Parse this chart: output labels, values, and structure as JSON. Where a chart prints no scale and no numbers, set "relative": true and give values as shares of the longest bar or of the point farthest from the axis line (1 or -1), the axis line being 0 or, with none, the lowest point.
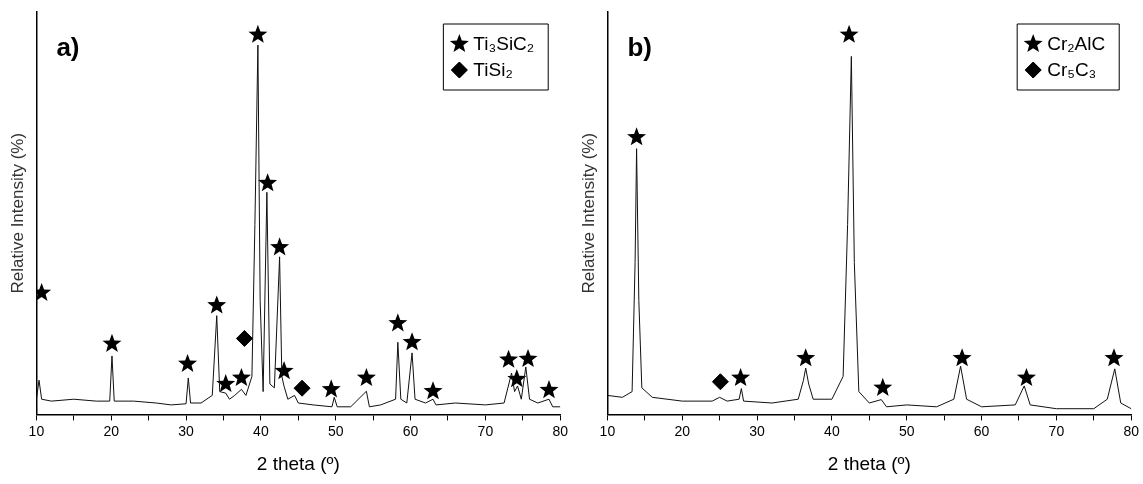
{
  "chart_data": [
    {
      "type": "line",
      "title": "a)",
      "xlabel": "2 theta (º)",
      "ylabel": "Relative Intensity (%)",
      "relative": true,
      "legend": "top right",
      "xlim": [
        10,
        80
      ],
      "xticks": [
        10,
        {
          "value": 15,
          "label": null
        },
        20,
        {
          "value": 25,
          "label": null
        },
        30,
        {
          "value": 35,
          "label": null
        },
        40,
        {
          "value": 45,
          "label": null
        },
        50,
        {
          "value": 55,
          "label": null
        },
        60,
        {
          "value": 65,
          "label": null
        },
        70,
        {
          "value": 75,
          "label": null
        },
        80
      ],
      "series": [
        {
          "type": "line",
          "color": "#111111",
          "marker": "none",
          "x": [
            10,
            10.35,
            10.7,
            12,
            15,
            18,
            19.8,
            20.1,
            20.4,
            23,
            26,
            28,
            30,
            30.3,
            30.6,
            32,
            33.5,
            34.1,
            34.5,
            35.3,
            35.8,
            36.5,
            37.4,
            38,
            38.8,
            39.2,
            39.6,
            39.9,
            40.3,
            40.8,
            41.2,
            41.8,
            42.5,
            42.8,
            43.1,
            43.6,
            44.5,
            45,
            47,
            49.5,
            49.8,
            50.2,
            52,
            54.1,
            54.5,
            56,
            58,
            58.3,
            58.7,
            59.5,
            60.2,
            60.6,
            62,
            63,
            63.4,
            66,
            70,
            72.5,
            73.5,
            73.9,
            74.3,
            74.8,
            75.4,
            75.9,
            77,
            78.5,
            79,
            80
          ],
          "values": [
            0.04,
            0.09,
            0.04,
            0.035,
            0.04,
            0.035,
            0.035,
            0.154,
            0.035,
            0.035,
            0.03,
            0.025,
            0.028,
            0.096,
            0.03,
            0.03,
            0.05,
            0.26,
            0.06,
            0.056,
            0.04,
            0.05,
            0.066,
            0.05,
            0.1,
            0.5,
            0.973,
            0.3,
            0.06,
            0.585,
            0.08,
            0.07,
            0.415,
            0.1,
            0.074,
            0.04,
            0.05,
            0.03,
            0.025,
            0.02,
            0.045,
            0.02,
            0.02,
            0.061,
            0.02,
            0.025,
            0.04,
            0.19,
            0.04,
            0.03,
            0.162,
            0.04,
            0.03,
            0.04,
            0.025,
            0.03,
            0.025,
            0.03,
            0.109,
            0.06,
            0.075,
            0.04,
            0.125,
            0.04,
            0.03,
            0.04,
            0.02,
            0.02
          ]
        },
        {
          "type": "scatter",
          "name": "Ti₃SiC₂",
          "color": "#000000",
          "marker": "star",
          "x": [
            10.7,
            20.1,
            30.2,
            34.1,
            35.3,
            37.4,
            39.6,
            40.9,
            42.5,
            43.1,
            49.4,
            54.1,
            58.3,
            60.2,
            63,
            73.1,
            74.2,
            75.7,
            78.5
          ],
          "values": [
            0.32,
            0.186,
            0.133,
            0.287,
            0.08,
            0.096,
            1,
            0.609,
            0.44,
            0.114,
            0.066,
            0.096,
            0.24,
            0.19,
            0.061,
            0.144,
            0.093,
            0.146,
            0.064
          ]
        },
        {
          "type": "scatter",
          "name": "TiSi₂",
          "color": "#000000",
          "marker": "diamond",
          "x": [
            37.8,
            45.5
          ],
          "values": [
            0.2,
            0.069
          ]
        }
      ]
    },
    {
      "type": "line",
      "title": "b)",
      "xlabel": "2 theta (º)",
      "ylabel": "Relative Intensity (%)",
      "relative": true,
      "legend": "top right",
      "xlim": [
        10,
        80
      ],
      "xticks": [
        10,
        {
          "value": 15,
          "label": null
        },
        20,
        {
          "value": 25,
          "label": null
        },
        30,
        {
          "value": 35,
          "label": null
        },
        40,
        {
          "value": 45,
          "label": null
        },
        50,
        {
          "value": 55,
          "label": null
        },
        60,
        {
          "value": 65,
          "label": null
        },
        70,
        {
          "value": 75,
          "label": null
        },
        80
      ],
      "series": [
        {
          "type": "line",
          "color": "#111111",
          "marker": "none",
          "x": [
            10,
            12,
            13.3,
            13.7,
            13.9,
            14.2,
            14.6,
            16,
            20,
            24,
            25,
            26,
            27.6,
            27.9,
            28.2,
            32,
            35.5,
            36.2,
            36.5,
            36.9,
            37.5,
            40,
            41.5,
            42.1,
            42.6,
            43,
            43.6,
            45,
            46.6,
            47.3,
            50,
            54,
            56.3,
            57.2,
            58,
            60,
            64.5,
            65.7,
            66.5,
            70,
            75,
            76.8,
            77.8,
            78.6,
            80
          ],
          "values": [
            0.05,
            0.045,
            0.06,
            0.4,
            0.7,
            0.3,
            0.07,
            0.045,
            0.035,
            0.035,
            0.045,
            0.035,
            0.04,
            0.068,
            0.035,
            0.03,
            0.04,
            0.09,
            0.122,
            0.08,
            0.04,
            0.04,
            0.1,
            0.5,
            0.943,
            0.4,
            0.06,
            0.03,
            0.039,
            0.02,
            0.025,
            0.02,
            0.04,
            0.127,
            0.04,
            0.02,
            0.025,
            0.075,
            0.025,
            0.015,
            0.015,
            0.04,
            0.12,
            0.03,
            0.015
          ]
        },
        {
          "type": "scatter",
          "name": "Cr₂AlC",
          "color": "#000000",
          "marker": "star",
          "x": [
            13.9,
            27.8,
            36.5,
            42.3,
            46.8,
            57.4,
            66,
            77.7
          ],
          "values": [
            0.73,
            0.096,
            0.148,
            1,
            0.07,
            0.148,
            0.096,
            0.148
          ]
        },
        {
          "type": "scatter",
          "name": "Cr₅C₃",
          "color": "#000000",
          "marker": "diamond",
          "x": [
            25.1
          ],
          "values": [
            0.086
          ]
        }
      ]
    }
  ]
}
